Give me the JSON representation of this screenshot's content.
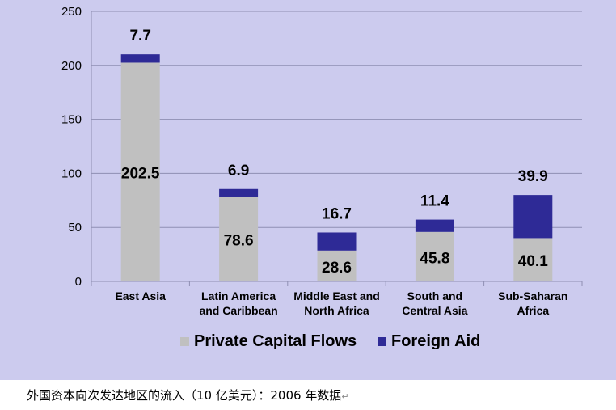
{
  "colors": {
    "background": "#cccbee",
    "private": "#c0c0c0",
    "aid": "#2e2a96",
    "grid": "#8f8fb3",
    "text": "#000000"
  },
  "caption": {
    "text": "外国资本向次发达地区的流入（10 亿美元）：2006 年数据",
    "mark": "↵"
  },
  "chart_data": {
    "type": "bar",
    "stacked": true,
    "categories": [
      [
        "East Asia"
      ],
      [
        "Latin America",
        "and Caribbean"
      ],
      [
        "Middle East and",
        "North Africa"
      ],
      [
        "South and",
        "Central Asia"
      ],
      [
        "Sub-Saharan",
        "Africa"
      ]
    ],
    "series": [
      {
        "name": "Private Capital Flows",
        "values": [
          202.5,
          78.6,
          28.6,
          45.8,
          40.1
        ],
        "labels": [
          "202.5",
          "78.6",
          "28.6",
          "45.8",
          "40.1"
        ],
        "color": "#c0c0c0"
      },
      {
        "name": "Foreign Aid",
        "values": [
          7.7,
          6.9,
          16.7,
          11.4,
          39.9
        ],
        "labels": [
          "7.7",
          "6.9",
          "16.7",
          "11.4",
          "39.9"
        ],
        "color": "#2e2a96"
      }
    ],
    "ylim": [
      0,
      250
    ],
    "yticks": [
      0,
      50,
      100,
      150,
      200,
      250
    ],
    "grid": true,
    "legend": "bottom"
  }
}
